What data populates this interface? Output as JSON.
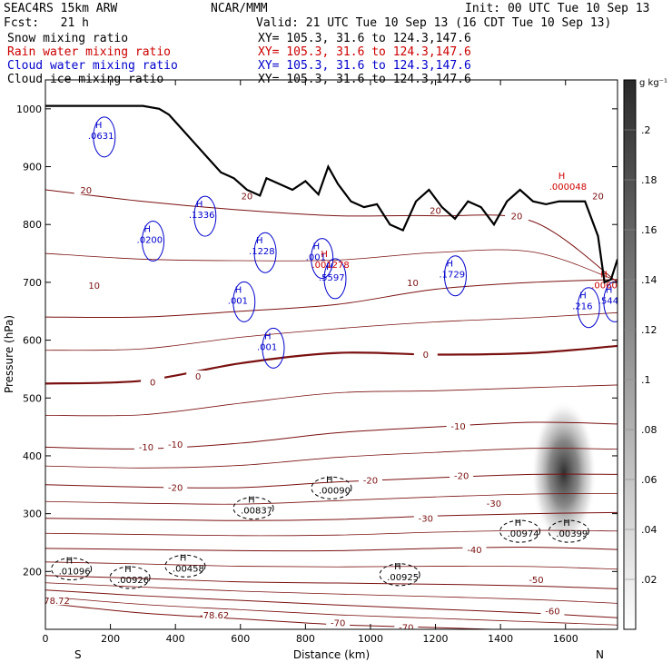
{
  "header": {
    "model": "SEAC4RS 15km ARW",
    "org": "NCAR/MMM",
    "init": "Init: 00 UTC Tue 10 Sep 13",
    "fcst": "Fcst:   21 h",
    "valid": "Valid: 21 UTC Tue 10 Sep 13 (16 CDT Tue 10 Sep 13)",
    "fields": [
      {
        "label": "Snow mixing ratio",
        "xy": "XY= 105.3, 31.6 to 124.3,147.6",
        "color": "#000000"
      },
      {
        "label": "Rain water mixing ratio",
        "xy": "XY= 105.3, 31.6 to 124.3,147.6",
        "color": "#cc0000"
      },
      {
        "label": "Cloud water mixing ratio",
        "xy": "XY= 105.3, 31.6 to 124.3,147.6",
        "color": "#0000cc"
      },
      {
        "label": "Cloud ice mixing ratio",
        "xy": "XY= 105.3, 31.6 to 124.3,147.6",
        "color": "#000000"
      }
    ]
  },
  "chart_data": {
    "type": "cross-section",
    "xlabel": "Distance (km)",
    "ylabel": "Pressure (hPa)",
    "xlim": [
      0,
      1760
    ],
    "ylim": [
      1050,
      100
    ],
    "x_ticks": [
      0,
      200,
      400,
      600,
      800,
      1000,
      1200,
      1400,
      1600
    ],
    "y_ticks": [
      200,
      300,
      400,
      500,
      600,
      700,
      800,
      900,
      1000
    ],
    "endpoint_labels": {
      "left": "S",
      "right": "N"
    },
    "colorbar": {
      "unit": "g kg⁻¹",
      "ticks": [
        ".02",
        ".04",
        ".06",
        ".08",
        ".1",
        ".12",
        ".14",
        ".16",
        ".18",
        ".2"
      ],
      "range": [
        0,
        0.22
      ]
    },
    "temperature_contours": [
      {
        "label": "-70",
        "points": [
          [
            0,
            145
          ],
          [
            300,
            128
          ],
          [
            600,
            118
          ],
          [
            900,
            108
          ],
          [
            1200,
            103
          ],
          [
            1500,
            98
          ],
          [
            1760,
            95
          ]
        ]
      },
      {
        "label": "-60",
        "points": [
          [
            0,
            168
          ],
          [
            300,
            158
          ],
          [
            600,
            150
          ],
          [
            900,
            142
          ],
          [
            1200,
            135
          ],
          [
            1500,
            128
          ],
          [
            1760,
            120
          ]
        ]
      },
      {
        "label": "-50",
        "points": [
          [
            0,
            193
          ],
          [
            300,
            188
          ],
          [
            600,
            182
          ],
          [
            900,
            180
          ],
          [
            1200,
            178
          ],
          [
            1500,
            175
          ],
          [
            1760,
            170
          ]
        ]
      },
      {
        "label": "-40",
        "points": [
          [
            0,
            240
          ],
          [
            300,
            238
          ],
          [
            600,
            236
          ],
          [
            900,
            236
          ],
          [
            1200,
            240
          ],
          [
            1500,
            242
          ],
          [
            1760,
            238
          ]
        ]
      },
      {
        "label": "-30",
        "points": [
          [
            0,
            292
          ],
          [
            300,
            290
          ],
          [
            600,
            288
          ],
          [
            900,
            290
          ],
          [
            1200,
            296
          ],
          [
            1500,
            300
          ],
          [
            1760,
            302
          ]
        ]
      },
      {
        "label": "-20",
        "points": [
          [
            0,
            350
          ],
          [
            300,
            346
          ],
          [
            600,
            345
          ],
          [
            900,
            355
          ],
          [
            1200,
            362
          ],
          [
            1500,
            368
          ],
          [
            1760,
            368
          ]
        ]
      },
      {
        "label": "-10",
        "points": [
          [
            0,
            415
          ],
          [
            300,
            412
          ],
          [
            600,
            422
          ],
          [
            900,
            440
          ],
          [
            1200,
            450
          ],
          [
            1500,
            458
          ],
          [
            1760,
            455
          ]
        ]
      },
      {
        "label": "0",
        "points": [
          [
            0,
            525
          ],
          [
            300,
            530
          ],
          [
            600,
            560
          ],
          [
            900,
            578
          ],
          [
            1200,
            575
          ],
          [
            1500,
            578
          ],
          [
            1760,
            590
          ]
        ]
      },
      {
        "label": "10",
        "points": [
          [
            0,
            640
          ],
          [
            300,
            640
          ],
          [
            600,
            650
          ],
          [
            900,
            662
          ],
          [
            1200,
            688
          ],
          [
            1500,
            700
          ],
          [
            1760,
            705
          ]
        ]
      },
      {
        "label": "20",
        "points": [
          [
            0,
            860
          ],
          [
            300,
            840
          ],
          [
            600,
            825
          ],
          [
            900,
            815
          ],
          [
            1200,
            815
          ],
          [
            1500,
            805
          ],
          [
            1760,
            700
          ]
        ]
      }
    ],
    "temperature_labels": [
      {
        "text": "-78.62",
        "x": 520,
        "p": 125
      },
      {
        "text": "-78.72",
        "x": 30,
        "p": 150
      },
      {
        "text": "-70",
        "x": 900,
        "p": 112
      },
      {
        "text": "-70",
        "x": 1110,
        "p": 104
      },
      {
        "text": "-60",
        "x": 1560,
        "p": 132
      },
      {
        "text": "-50",
        "x": 1510,
        "p": 186
      },
      {
        "text": "-40",
        "x": 1320,
        "p": 238
      },
      {
        "text": "-30",
        "x": 1170,
        "p": 292
      },
      {
        "text": "-30",
        "x": 1380,
        "p": 318
      },
      {
        "text": "-20",
        "x": 400,
        "p": 346
      },
      {
        "text": "-20",
        "x": 1000,
        "p": 358
      },
      {
        "text": "-20",
        "x": 1280,
        "p": 366
      },
      {
        "text": "-10",
        "x": 310,
        "p": 416
      },
      {
        "text": "-10",
        "x": 400,
        "p": 420
      },
      {
        "text": "-10",
        "x": 1270,
        "p": 452
      },
      {
        "text": "0",
        "x": 330,
        "p": 528
      },
      {
        "text": "0",
        "x": 470,
        "p": 538
      },
      {
        "text": "0",
        "x": 1170,
        "p": 576
      },
      {
        "text": "10",
        "x": 150,
        "p": 695
      },
      {
        "text": "10",
        "x": 1130,
        "p": 700
      },
      {
        "text": "20",
        "x": 125,
        "p": 860
      },
      {
        "text": "20",
        "x": 620,
        "p": 850
      },
      {
        "text": "20",
        "x": 1200,
        "p": 825
      },
      {
        "text": "20",
        "x": 1450,
        "p": 815
      },
      {
        "text": "20",
        "x": 1700,
        "p": 850
      }
    ],
    "terrain": [
      [
        0,
        1005
      ],
      [
        100,
        1005
      ],
      [
        200,
        1005
      ],
      [
        300,
        1005
      ],
      [
        350,
        1000
      ],
      [
        380,
        990
      ],
      [
        420,
        965
      ],
      [
        460,
        940
      ],
      [
        500,
        915
      ],
      [
        540,
        890
      ],
      [
        580,
        880
      ],
      [
        620,
        860
      ],
      [
        660,
        850
      ],
      [
        680,
        880
      ],
      [
        720,
        870
      ],
      [
        760,
        860
      ],
      [
        800,
        875
      ],
      [
        840,
        852
      ],
      [
        870,
        900
      ],
      [
        900,
        870
      ],
      [
        940,
        840
      ],
      [
        980,
        830
      ],
      [
        1020,
        835
      ],
      [
        1060,
        800
      ],
      [
        1100,
        790
      ],
      [
        1140,
        840
      ],
      [
        1180,
        860
      ],
      [
        1220,
        830
      ],
      [
        1260,
        810
      ],
      [
        1300,
        840
      ],
      [
        1340,
        830
      ],
      [
        1380,
        800
      ],
      [
        1420,
        840
      ],
      [
        1460,
        860
      ],
      [
        1500,
        840
      ],
      [
        1540,
        835
      ],
      [
        1580,
        840
      ],
      [
        1620,
        840
      ],
      [
        1660,
        840
      ],
      [
        1700,
        780
      ],
      [
        1720,
        700
      ],
      [
        1740,
        705
      ],
      [
        1760,
        740
      ]
    ],
    "cloud_water_maxima": [
      {
        "text": ".001",
        "x": 690,
        "p": 580
      },
      {
        "text": ".001",
        "x": 600,
        "p": 660
      },
      {
        "text": ".216",
        "x": 1660,
        "p": 650
      },
      {
        "text": ".544",
        "x": 1740,
        "p": 660
      },
      {
        "text": ".5597",
        "x": 880,
        "p": 700
      },
      {
        "text": ".1729",
        "x": 1250,
        "p": 705
      },
      {
        "text": ".1228",
        "x": 665,
        "p": 745
      },
      {
        "text": ".001",
        "x": 840,
        "p": 735
      },
      {
        "text": ".0200",
        "x": 320,
        "p": 765
      },
      {
        "text": ".1336",
        "x": 480,
        "p": 808
      },
      {
        "text": ".0631",
        "x": 170,
        "p": 945
      }
    ],
    "rain_water_maxima": [
      {
        "text": ".001278",
        "x": 870,
        "p": 725
      },
      {
        "text": ".0060",
        "x": 1730,
        "p": 690
      },
      {
        "text": ".000048",
        "x": 1600,
        "p": 860
      }
    ],
    "ice_snow_maxima": [
      {
        "text": ".01096",
        "x": 80,
        "p": 195
      },
      {
        "text": ".00926",
        "x": 260,
        "p": 180
      },
      {
        "text": ".00458",
        "x": 430,
        "p": 200
      },
      {
        "text": ".00925",
        "x": 1090,
        "p": 185
      },
      {
        "text": ".00837",
        "x": 640,
        "p": 300
      },
      {
        "text": ".00090",
        "x": 880,
        "p": 335
      },
      {
        "text": ".00974",
        "x": 1460,
        "p": 260
      },
      {
        "text": ".00399",
        "x": 1610,
        "p": 260
      }
    ],
    "cloud_ice_core": {
      "x": 1595,
      "p": 370,
      "value": 0.2
    }
  }
}
